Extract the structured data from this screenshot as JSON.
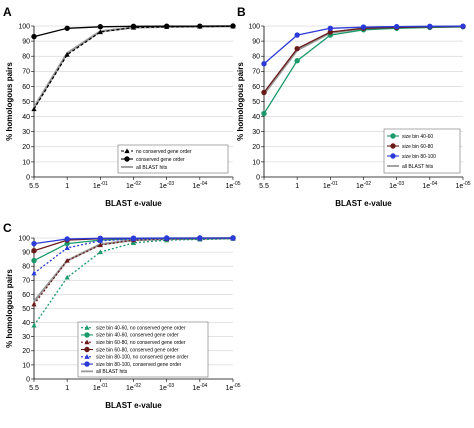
{
  "chart_data": [
    {
      "panel": "A",
      "type": "line",
      "x": [
        "5.5",
        "1",
        "1e-01",
        "1e-02",
        "1e-03",
        "1e-04",
        "1e-05"
      ],
      "ylim": [
        0,
        100
      ],
      "yticks": [
        0,
        10,
        20,
        30,
        40,
        50,
        60,
        70,
        80,
        90,
        100
      ],
      "xlabel": "BLAST e-value",
      "ylabel": "% homologous pairs",
      "legend_position": "bottom-right",
      "series": [
        {
          "name": "no conserved gene order",
          "color": "#000000",
          "dash": "3,2",
          "marker": "triangle",
          "values": [
            45,
            81,
            96,
            99,
            99.5,
            99.7,
            99.8
          ]
        },
        {
          "name": "conserved gene order",
          "color": "#000000",
          "dash": "",
          "marker": "circle",
          "values": [
            93,
            98.5,
            99.5,
            99.8,
            99.9,
            99.9,
            100
          ]
        },
        {
          "name": "all BLAST hits",
          "color": "#999999",
          "dash": "",
          "marker": "none",
          "values": [
            46,
            82,
            96.5,
            99,
            99.5,
            99.7,
            99.8
          ]
        }
      ]
    },
    {
      "panel": "B",
      "type": "line",
      "x": [
        "5.5",
        "1",
        "1e-01",
        "1e-02",
        "1e-03",
        "1e-04",
        "1e-05"
      ],
      "ylim": [
        0,
        100
      ],
      "yticks": [
        0,
        10,
        20,
        30,
        40,
        50,
        60,
        70,
        80,
        90,
        100
      ],
      "xlabel": "BLAST e-value",
      "ylabel": "% homologous pairs",
      "legend_position": "bottom-right",
      "series": [
        {
          "name": "size bin 40-60",
          "color": "#1a9a6a",
          "dash": "",
          "marker": "circle",
          "values": [
            42,
            77,
            94,
            97.5,
            98.5,
            99,
            99.5
          ]
        },
        {
          "name": "size bin 60-80",
          "color": "#6b1a1a",
          "dash": "",
          "marker": "circle",
          "values": [
            56,
            85,
            96,
            98.5,
            99,
            99.5,
            99.7
          ]
        },
        {
          "name": "size bin 80-100",
          "color": "#2a3bd9",
          "dash": "",
          "marker": "circle",
          "values": [
            75,
            94,
            98.5,
            99.3,
            99.6,
            99.8,
            99.9
          ]
        },
        {
          "name": "all BLAST hits",
          "color": "#999999",
          "dash": "",
          "marker": "none",
          "values": [
            55,
            84,
            95.5,
            98.5,
            99.2,
            99.5,
            99.7
          ]
        }
      ]
    },
    {
      "panel": "C",
      "type": "line",
      "x": [
        "5.5",
        "1",
        "1e-01",
        "1e-02",
        "1e-03",
        "1e-04",
        "1e-05"
      ],
      "ylim": [
        0,
        100
      ],
      "yticks": [
        0,
        10,
        20,
        30,
        40,
        50,
        60,
        70,
        80,
        90,
        100
      ],
      "xlabel": "BLAST e-value",
      "ylabel": "% homologous pairs",
      "legend_position": "bottom-center",
      "series": [
        {
          "name": "size bin 40-60, no conserved gene order",
          "color": "#1a9a6a",
          "dash": "2,2",
          "marker": "triangle",
          "values": [
            38,
            72,
            90,
            96.5,
            98.5,
            99,
            99.5
          ]
        },
        {
          "name": "size bin 40-60, conserved gene order",
          "color": "#1a9a6a",
          "dash": "",
          "marker": "circle",
          "values": [
            84,
            96,
            98.5,
            99.5,
            99.8,
            99.9,
            100
          ]
        },
        {
          "name": "size bin 60-80, no conserved gene order",
          "color": "#6b1a1a",
          "dash": "2,2",
          "marker": "triangle",
          "values": [
            53,
            84,
            95,
            98.5,
            99.3,
            99.6,
            99.8
          ]
        },
        {
          "name": "size bin 60-80, conserved gene order",
          "color": "#6b1a1a",
          "dash": "",
          "marker": "circle",
          "values": [
            91,
            98.5,
            99.5,
            99.8,
            99.9,
            100,
            100
          ]
        },
        {
          "name": "size bin 80-100, no conserved gene order",
          "color": "#2a3bd9",
          "dash": "2,2",
          "marker": "triangle",
          "values": [
            75,
            93,
            98,
            99.3,
            99.6,
            99.8,
            99.9
          ]
        },
        {
          "name": "size bin 80-100, conserved gene order",
          "color": "#2a3bd9",
          "dash": "",
          "marker": "circle",
          "values": [
            96,
            99.3,
            99.8,
            99.9,
            100,
            100,
            100
          ]
        },
        {
          "name": "all BLAST hits",
          "color": "#999999",
          "dash": "",
          "marker": "none",
          "values": [
            55,
            84,
            95.5,
            98.5,
            99.2,
            99.5,
            99.7
          ]
        }
      ]
    }
  ]
}
